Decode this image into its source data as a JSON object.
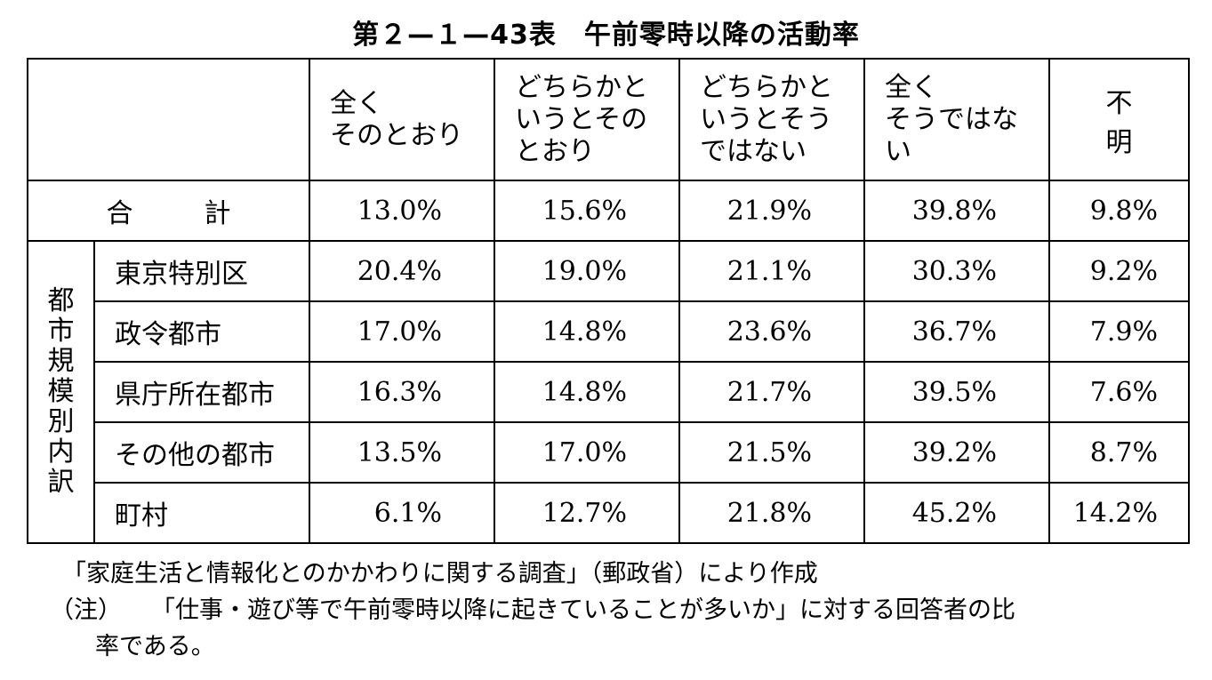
{
  "title": "第２—１—43表　午前零時以降の活動率",
  "table": {
    "headers": [
      "全く\nそのとおり",
      "どちらかと\nいうとその\nとおり",
      "どちらかと\nいうとそう\nではない",
      "全く\nそうではな\nい",
      "不　明"
    ],
    "total": {
      "label": "合計",
      "values": [
        "13.0%",
        "15.6%",
        "21.9%",
        "39.8%",
        "9.8%"
      ]
    },
    "group_label": "都市規模別内訳",
    "rows": [
      {
        "label": "東京特別区",
        "values": [
          "20.4%",
          "19.0%",
          "21.1%",
          "30.3%",
          "9.2%"
        ]
      },
      {
        "label": "政令都市",
        "values": [
          "17.0%",
          "14.8%",
          "23.6%",
          "36.7%",
          "7.9%"
        ]
      },
      {
        "label": "県庁所在都市",
        "values": [
          "16.3%",
          "14.8%",
          "21.7%",
          "39.5%",
          "7.6%"
        ]
      },
      {
        "label": "その他の都市",
        "values": [
          "13.5%",
          "17.0%",
          "21.5%",
          "39.2%",
          "8.7%"
        ]
      },
      {
        "label": "町村",
        "values": [
          "6.1%",
          "12.7%",
          "21.8%",
          "45.2%",
          "14.2%"
        ]
      }
    ]
  },
  "source": "「家庭生活と情報化とのかかわりに関する調査」（郵政省）により作成",
  "note": {
    "prefix": "（注）",
    "line1": "「仕事・遊び等で午前零時以降に起きていることが多いか」に対する回答者の比",
    "line2": "率である。"
  }
}
